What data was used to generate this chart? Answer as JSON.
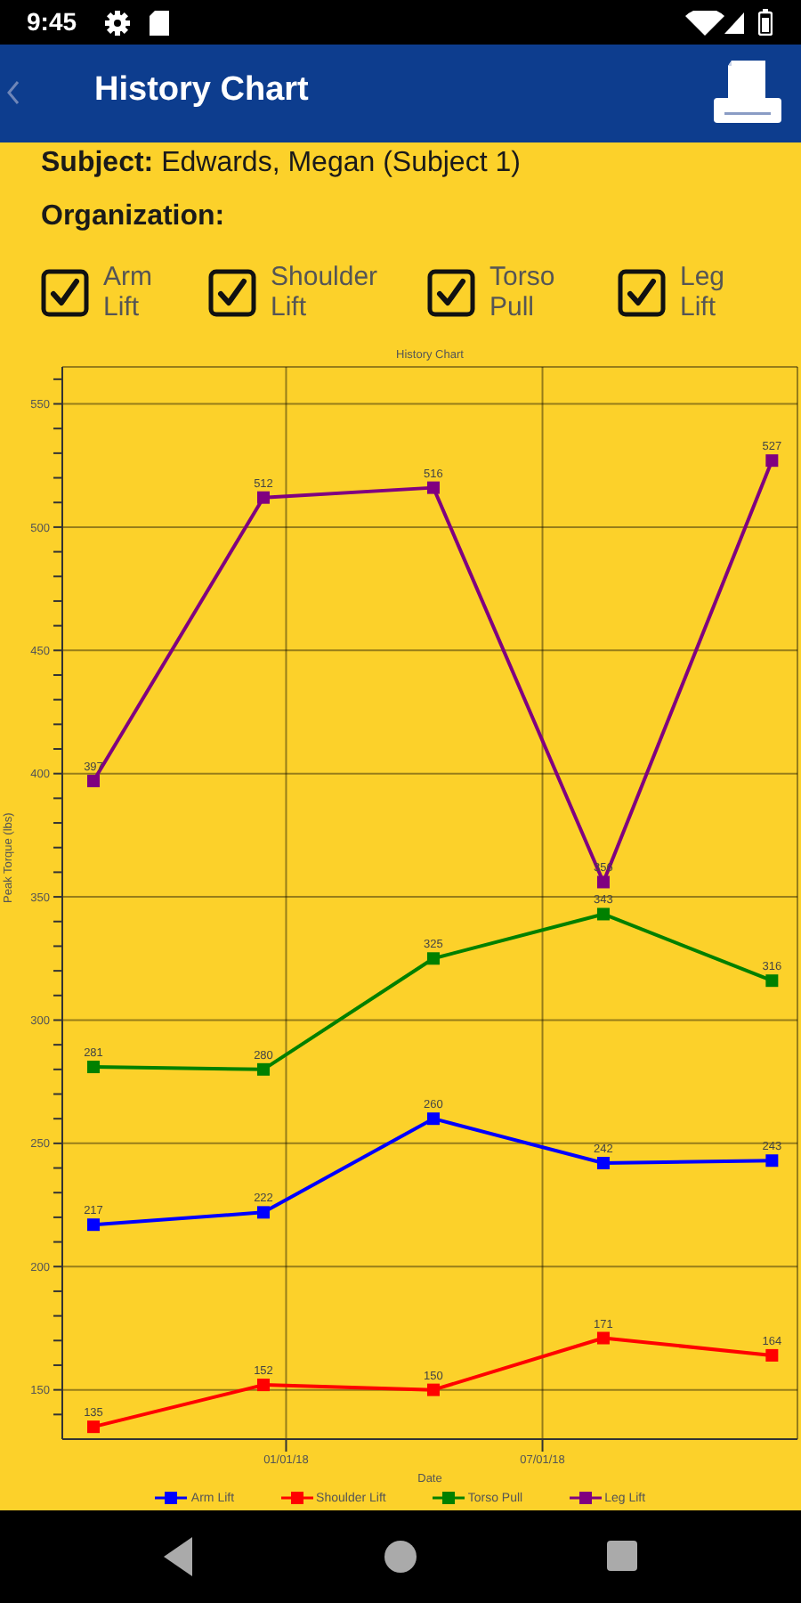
{
  "chart_data": {
    "type": "line",
    "title": "History Chart",
    "xlabel": "Date",
    "ylabel": "Peak Torque (lbs)",
    "annotations": [
      "9:45",
      "Subject: Edwards, Megan (Subject 1)",
      "Organization:"
    ],
    "x": [
      "2017-08-18",
      "2017-12-16",
      "2018-04-15",
      "2018-08-13",
      "2018-12-10"
    ],
    "xlim": [
      "2017-07-27",
      "2018-12-28"
    ],
    "xticks": [
      {
        "value": "2018-01-01",
        "label": "01/01/18"
      },
      {
        "value": "2018-07-01",
        "label": "07/01/18"
      }
    ],
    "ylim": [
      130,
      565
    ],
    "yticks": [
      {
        "value": 140,
        "label": null
      },
      150,
      {
        "value": 160,
        "label": null
      },
      {
        "value": 170,
        "label": null
      },
      {
        "value": 180,
        "label": null
      },
      {
        "value": 190,
        "label": null
      },
      200,
      {
        "value": 210,
        "label": null
      },
      {
        "value": 220,
        "label": null
      },
      {
        "value": 230,
        "label": null
      },
      {
        "value": 240,
        "label": null
      },
      250,
      {
        "value": 260,
        "label": null
      },
      {
        "value": 270,
        "label": null
      },
      {
        "value": 280,
        "label": null
      },
      {
        "value": 290,
        "label": null
      },
      300,
      {
        "value": 310,
        "label": null
      },
      {
        "value": 320,
        "label": null
      },
      {
        "value": 330,
        "label": null
      },
      {
        "value": 340,
        "label": null
      },
      350,
      {
        "value": 360,
        "label": null
      },
      {
        "value": 370,
        "label": null
      },
      {
        "value": 380,
        "label": null
      },
      {
        "value": 390,
        "label": null
      },
      400,
      {
        "value": 410,
        "label": null
      },
      {
        "value": 420,
        "label": null
      },
      {
        "value": 430,
        "label": null
      },
      {
        "value": 440,
        "label": null
      },
      450,
      {
        "value": 460,
        "label": null
      },
      {
        "value": 470,
        "label": null
      },
      {
        "value": 480,
        "label": null
      },
      {
        "value": 490,
        "label": null
      },
      500,
      {
        "value": 510,
        "label": null
      },
      {
        "value": 520,
        "label": null
      },
      {
        "value": 530,
        "label": null
      },
      {
        "value": 540,
        "label": null
      },
      550,
      {
        "value": 560,
        "label": null
      }
    ],
    "series": [
      {
        "name": "Arm Lift",
        "color": "#0000ff",
        "values": [
          217,
          222,
          260,
          242,
          243
        ]
      },
      {
        "name": "Shoulder Lift",
        "color": "#ff0000",
        "values": [
          135,
          152,
          150,
          171,
          164
        ]
      },
      {
        "name": "Torso Pull",
        "color": "#008000",
        "values": [
          281,
          280,
          325,
          343,
          316
        ]
      },
      {
        "name": "Leg Lift",
        "color": "#800080",
        "values": [
          397,
          512,
          516,
          356,
          527
        ]
      }
    ],
    "data_labels": true,
    "grid": true,
    "legend": "bottom",
    "marker": "square",
    "line_style": "solid"
  }
}
